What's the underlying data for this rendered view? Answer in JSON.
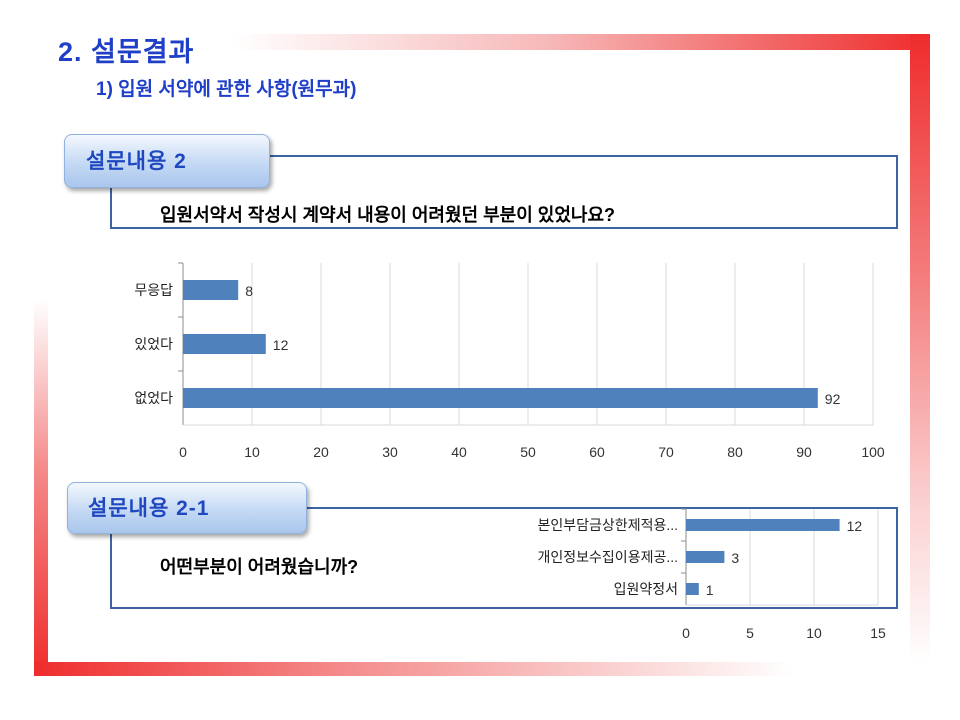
{
  "slide": {
    "title": "2. 설문결과",
    "subtitle": "1) 입원 서약에 관한 사항(원무과)"
  },
  "survey_2": {
    "label": "설문내용 2",
    "question": "입원서약서 작성시 계약서 내용이 어려웠던 부분이 있었나요?"
  },
  "survey_2_1": {
    "label": "설문내용 2-1",
    "question": "어떤부분이 어려웠습니까?"
  },
  "colors": {
    "bar": "#4f81bd",
    "pill_text": "#1f48c0",
    "title": "#1f3fc8",
    "frame_red": "#ef2c2c"
  },
  "chart_data": [
    {
      "type": "bar",
      "orientation": "horizontal",
      "categories": [
        "무응답",
        "있었다",
        "없었다"
      ],
      "values": [
        8,
        12,
        92
      ],
      "xlim": [
        0,
        100
      ],
      "xticks": [
        0,
        10,
        20,
        30,
        40,
        50,
        60,
        70,
        80,
        90,
        100
      ],
      "grid": true
    },
    {
      "type": "bar",
      "orientation": "horizontal",
      "categories": [
        "본인부담금상한제적용...",
        "개인정보수집이용제공...",
        "입원약정서"
      ],
      "values": [
        12,
        3,
        1
      ],
      "xlim": [
        0,
        15
      ],
      "xticks": [
        0,
        5,
        10,
        15
      ],
      "grid": true
    }
  ]
}
